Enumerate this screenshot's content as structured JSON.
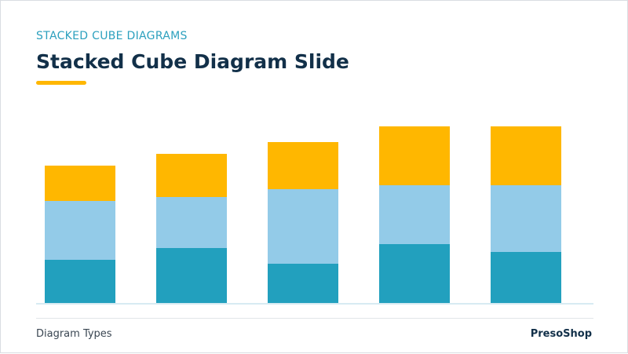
{
  "header": {
    "eyebrow": "STACKED CUBE DIAGRAMS",
    "title": "Stacked Cube Diagram Slide"
  },
  "footer": {
    "left_text": "Diagram Types",
    "brand": "PresoShop"
  },
  "colors": {
    "accent": "#FFB700",
    "segment_bottom": "#22A0BE",
    "segment_middle": "#93CBE8",
    "segment_top": "#FFB700",
    "baseline": "#D7EBF2"
  },
  "chart_data": {
    "type": "bar",
    "stacked": true,
    "categories": [
      "",
      "",
      "",
      "",
      ""
    ],
    "series": [
      {
        "values": [
          55,
          70,
          50,
          75,
          65
        ]
      },
      {
        "values": [
          75,
          65,
          95,
          75,
          85
        ]
      },
      {
        "values": [
          45,
          55,
          60,
          75,
          75
        ]
      }
    ],
    "ylim": [
      0,
      240
    ],
    "grid": false
  }
}
